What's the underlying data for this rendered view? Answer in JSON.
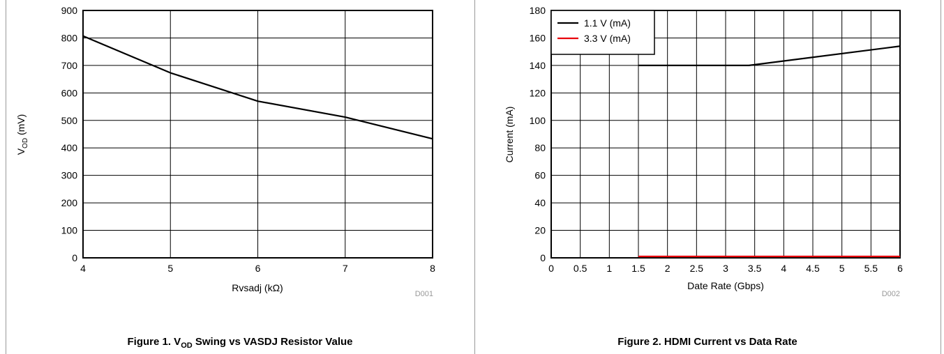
{
  "chart_data": [
    {
      "type": "line",
      "xlabel": "Rvsadj (kΩ)",
      "ylabel_main": "V",
      "ylabel_sub": "OD",
      "ylabel_unit": " (mV)",
      "xlim": [
        4,
        8
      ],
      "ylim": [
        0,
        900
      ],
      "xticks": [
        "4",
        "5",
        "6",
        "7",
        "8"
      ],
      "yticks": [
        "0",
        "100",
        "200",
        "300",
        "400",
        "500",
        "600",
        "700",
        "800",
        "900"
      ],
      "grid": true,
      "code": "D001",
      "series": [
        {
          "color": "#000000",
          "x": [
            4,
            5,
            6,
            7,
            8
          ],
          "y": [
            807,
            673,
            570,
            512,
            433
          ]
        }
      ],
      "caption_prefix": "Figure 1. V",
      "caption_sub": "OD",
      "caption_suffix": " Swing vs VASDJ Resistor Value"
    },
    {
      "type": "line",
      "xlabel": "Date Rate (Gbps)",
      "ylabel": "Current (mA)",
      "xlim": [
        0,
        6
      ],
      "ylim": [
        0,
        180
      ],
      "xticks": [
        "0",
        "0.5",
        "1",
        "1.5",
        "2",
        "2.5",
        "3",
        "3.5",
        "4",
        "4.5",
        "5",
        "5.5",
        "6"
      ],
      "yticks": [
        "0",
        "20",
        "40",
        "60",
        "80",
        "100",
        "120",
        "140",
        "160",
        "180"
      ],
      "grid": true,
      "legend_position": "top-left",
      "code": "D002",
      "series": [
        {
          "name": "1.1 V (mA)",
          "color": "#000000",
          "x": [
            1.5,
            3.4,
            6
          ],
          "y": [
            140,
            140,
            154
          ]
        },
        {
          "name": "3.3 V (mA)",
          "color": "#e8000b",
          "x": [
            1.5,
            6
          ],
          "y": [
            1,
            1
          ]
        }
      ],
      "caption": "Figure 2. HDMI Current vs Data Rate"
    }
  ]
}
